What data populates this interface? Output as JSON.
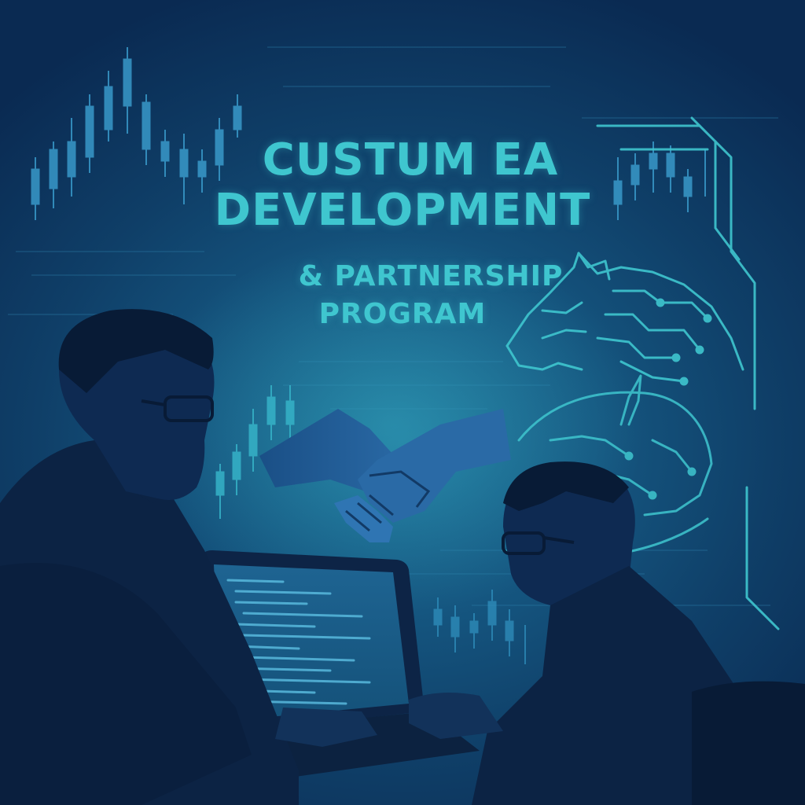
{
  "poster": {
    "title_line_1": "CUSTUM EA",
    "title_line_2": "DEVELOPMENT",
    "subtitle_line_1": "& PARTNERSHIP",
    "subtitle_line_2": "PROGRAM"
  },
  "palette": {
    "background_dark": "#0a2a52",
    "background_glow": "#1d6e98",
    "accent_teal": "#3fc6cf",
    "silhouette": "#0c2344"
  },
  "icons": [
    "candlestick-chart-icon",
    "handshake-icon",
    "circuit-tiger-icon",
    "circuit-bull-icon",
    "laptop-icon"
  ]
}
